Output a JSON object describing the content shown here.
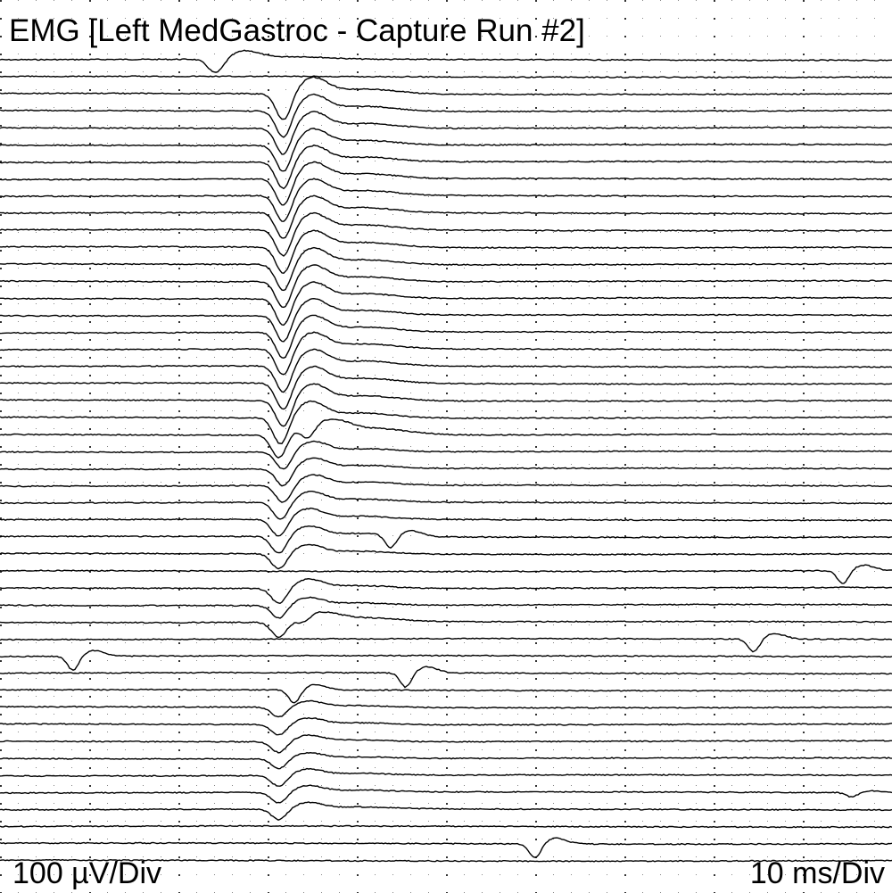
{
  "chart_data": {
    "type": "line",
    "title": "EMG [Left MedGastroc - Capture Run #2]",
    "vertical_scale": "100 µV/Div",
    "time_scale": "10 ms/Div",
    "grid": "dotted",
    "x_divisions": 10,
    "trace_count": 48,
    "trace_color": "#000000",
    "traces": [
      {
        "index": 1,
        "components": [
          {
            "latency_ms": 24.2,
            "amplitude_uv": 320,
            "kind": "motor"
          }
        ]
      },
      {
        "index": 2,
        "components": []
      },
      {
        "index": 3,
        "components": [
          {
            "latency_ms": 31.8,
            "amplitude_uv": 620,
            "kind": "motor"
          }
        ]
      },
      {
        "index": 4,
        "components": [
          {
            "latency_ms": 31.8,
            "amplitude_uv": 620,
            "kind": "motor"
          }
        ]
      },
      {
        "index": 5,
        "components": [
          {
            "latency_ms": 31.8,
            "amplitude_uv": 620,
            "kind": "motor"
          }
        ]
      },
      {
        "index": 6,
        "components": [
          {
            "latency_ms": 31.8,
            "amplitude_uv": 620,
            "kind": "motor"
          }
        ]
      },
      {
        "index": 7,
        "components": [
          {
            "latency_ms": 31.8,
            "amplitude_uv": 620,
            "kind": "motor"
          }
        ]
      },
      {
        "index": 8,
        "components": [
          {
            "latency_ms": 31.8,
            "amplitude_uv": 620,
            "kind": "motor"
          }
        ]
      },
      {
        "index": 9,
        "components": [
          {
            "latency_ms": 31.8,
            "amplitude_uv": 620,
            "kind": "motor"
          }
        ]
      },
      {
        "index": 10,
        "components": [
          {
            "latency_ms": 31.8,
            "amplitude_uv": 620,
            "kind": "motor"
          }
        ]
      },
      {
        "index": 11,
        "components": [
          {
            "latency_ms": 31.8,
            "amplitude_uv": 620,
            "kind": "motor"
          }
        ]
      },
      {
        "index": 12,
        "components": [
          {
            "latency_ms": 31.8,
            "amplitude_uv": 620,
            "kind": "motor"
          }
        ]
      },
      {
        "index": 13,
        "components": [
          {
            "latency_ms": 31.8,
            "amplitude_uv": 620,
            "kind": "motor"
          }
        ]
      },
      {
        "index": 14,
        "components": [
          {
            "latency_ms": 31.8,
            "amplitude_uv": 620,
            "kind": "motor"
          }
        ]
      },
      {
        "index": 15,
        "components": [
          {
            "latency_ms": 31.8,
            "amplitude_uv": 620,
            "kind": "motor"
          }
        ]
      },
      {
        "index": 16,
        "components": [
          {
            "latency_ms": 31.8,
            "amplitude_uv": 620,
            "kind": "motor"
          }
        ]
      },
      {
        "index": 17,
        "components": [
          {
            "latency_ms": 31.8,
            "amplitude_uv": 620,
            "kind": "motor"
          }
        ]
      },
      {
        "index": 18,
        "components": [
          {
            "latency_ms": 31.8,
            "amplitude_uv": 620,
            "kind": "motor"
          }
        ]
      },
      {
        "index": 19,
        "components": [
          {
            "latency_ms": 31.8,
            "amplitude_uv": 620,
            "kind": "motor"
          }
        ]
      },
      {
        "index": 20,
        "components": [
          {
            "latency_ms": 31.8,
            "amplitude_uv": 620,
            "kind": "motor"
          }
        ]
      },
      {
        "index": 21,
        "components": [
          {
            "latency_ms": 31.8,
            "amplitude_uv": 620,
            "kind": "motor"
          }
        ]
      },
      {
        "index": 22,
        "components": [
          {
            "latency_ms": 31.5,
            "amplitude_uv": 620,
            "kind": "motor"
          }
        ]
      },
      {
        "index": 23,
        "components": [
          {
            "latency_ms": 31.3,
            "amplitude_uv": 540,
            "kind": "motor"
          },
          {
            "latency_ms": 34.5,
            "amplitude_uv": 400,
            "kind": "motor"
          }
        ]
      },
      {
        "index": 24,
        "components": [
          {
            "latency_ms": 31.8,
            "amplitude_uv": 400,
            "kind": "motor"
          }
        ]
      },
      {
        "index": 25,
        "components": [
          {
            "latency_ms": 31.8,
            "amplitude_uv": 400,
            "kind": "motor"
          }
        ]
      },
      {
        "index": 26,
        "components": [
          {
            "latency_ms": 31.8,
            "amplitude_uv": 400,
            "kind": "motor"
          }
        ]
      },
      {
        "index": 27,
        "components": [
          {
            "latency_ms": 31.5,
            "amplitude_uv": 400,
            "kind": "motor"
          }
        ]
      },
      {
        "index": 28,
        "components": [
          {
            "latency_ms": 31.3,
            "amplitude_uv": 400,
            "kind": "motor"
          }
        ]
      },
      {
        "index": 29,
        "components": [
          {
            "latency_ms": 31.3,
            "amplitude_uv": 400,
            "kind": "motor"
          },
          {
            "latency_ms": 43.8,
            "amplitude_uv": 300,
            "kind": "single"
          }
        ]
      },
      {
        "index": 30,
        "components": [
          {
            "latency_ms": 31.3,
            "amplitude_uv": 350,
            "kind": "motor"
          }
        ]
      },
      {
        "index": 31,
        "components": [
          {
            "latency_ms": 94.5,
            "amplitude_uv": 300,
            "kind": "single"
          }
        ]
      },
      {
        "index": 32,
        "components": [
          {
            "latency_ms": 31.3,
            "amplitude_uv": 350,
            "kind": "motor"
          }
        ]
      },
      {
        "index": 33,
        "components": [
          {
            "latency_ms": 31.3,
            "amplitude_uv": 300,
            "kind": "motor"
          }
        ]
      },
      {
        "index": 34,
        "components": [
          {
            "latency_ms": 31.3,
            "amplitude_uv": 350,
            "kind": "motor"
          },
          {
            "latency_ms": 34.0,
            "amplitude_uv": 200,
            "kind": "motor"
          }
        ]
      },
      {
        "index": 35,
        "components": [
          {
            "latency_ms": 84.5,
            "amplitude_uv": 300,
            "kind": "single"
          }
        ]
      },
      {
        "index": 36,
        "components": [
          {
            "latency_ms": 8.2,
            "amplitude_uv": 320,
            "kind": "single"
          }
        ]
      },
      {
        "index": 37,
        "components": [
          {
            "latency_ms": 45.5,
            "amplitude_uv": 330,
            "kind": "single"
          }
        ]
      },
      {
        "index": 38,
        "components": [
          {
            "latency_ms": 33.0,
            "amplitude_uv": 300,
            "kind": "single"
          }
        ]
      },
      {
        "index": 39,
        "components": [
          {
            "latency_ms": 31.3,
            "amplitude_uv": 230,
            "kind": "motor"
          }
        ]
      },
      {
        "index": 40,
        "components": [
          {
            "latency_ms": 31.3,
            "amplitude_uv": 250,
            "kind": "motor"
          }
        ]
      },
      {
        "index": 41,
        "components": [
          {
            "latency_ms": 31.3,
            "amplitude_uv": 250,
            "kind": "motor"
          }
        ]
      },
      {
        "index": 42,
        "components": [
          {
            "latency_ms": 31.3,
            "amplitude_uv": 230,
            "kind": "motor"
          }
        ]
      },
      {
        "index": 43,
        "components": [
          {
            "latency_ms": 31.3,
            "amplitude_uv": 250,
            "kind": "motor"
          }
        ]
      },
      {
        "index": 44,
        "components": [
          {
            "latency_ms": 31.3,
            "amplitude_uv": 250,
            "kind": "motor"
          },
          {
            "latency_ms": 95.5,
            "amplitude_uv": 100,
            "kind": "single"
          }
        ]
      },
      {
        "index": 45,
        "components": [
          {
            "latency_ms": 31.3,
            "amplitude_uv": 250,
            "kind": "motor"
          }
        ]
      },
      {
        "index": 46,
        "components": []
      },
      {
        "index": 47,
        "components": [
          {
            "latency_ms": 60.0,
            "amplitude_uv": 320,
            "kind": "single"
          }
        ]
      },
      {
        "index": 48,
        "components": []
      }
    ]
  }
}
